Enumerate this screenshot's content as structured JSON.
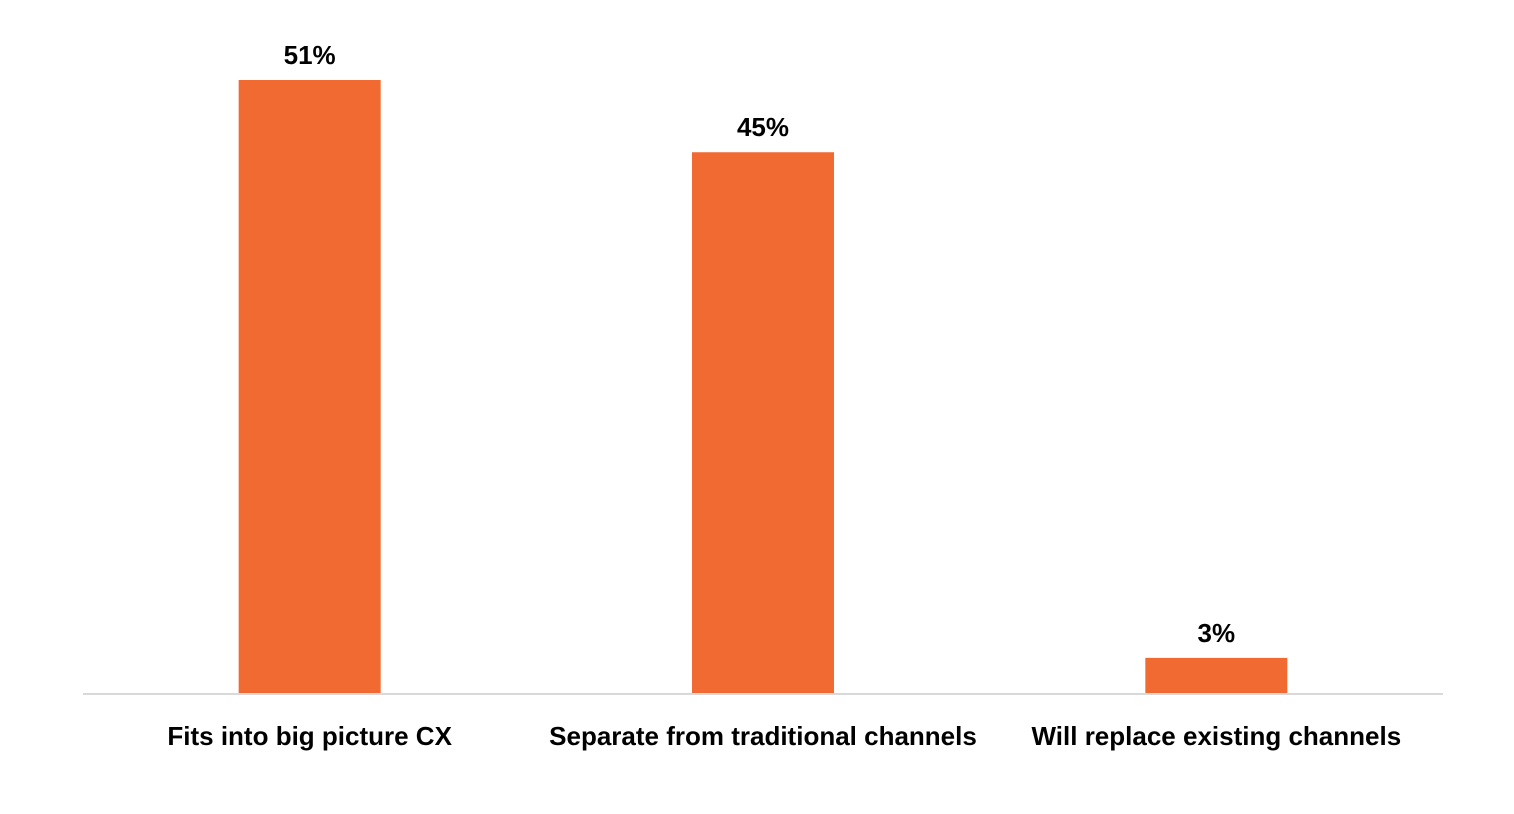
{
  "chart_data": {
    "type": "bar",
    "categories": [
      "Fits into big picture CX",
      "Separate from traditional channels",
      "Will replace existing channels"
    ],
    "values": [
      51,
      45,
      3
    ],
    "data_labels": [
      "51%",
      "45%",
      "3%"
    ],
    "unit": "%",
    "ylim": [
      0,
      51
    ],
    "grid": false,
    "legend": "none",
    "colors": {
      "bar": "#F06A32",
      "axis": "#D9D9D9"
    }
  }
}
